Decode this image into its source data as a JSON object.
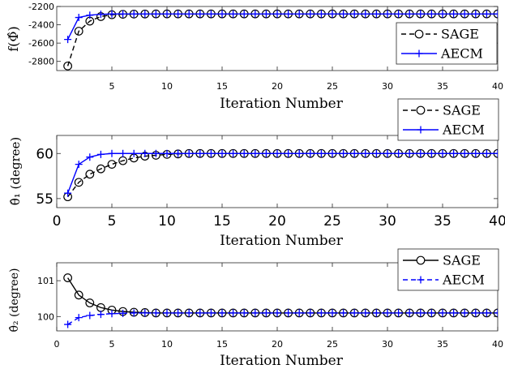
{
  "chart_data": [
    {
      "type": "line",
      "title": "",
      "xlabel": "Iteration Number",
      "ylabel": "f(Φ̂)",
      "xlim": [
        0,
        40
      ],
      "ylim": [
        -2900,
        -2200
      ],
      "x_ticks": [
        "5",
        "10",
        "15",
        "20",
        "25",
        "30",
        "35",
        "40"
      ],
      "y_ticks": [
        "-2200",
        "-2400",
        "-2600",
        "-2800"
      ],
      "y_tick_values": [
        -2200,
        -2400,
        -2600,
        -2800
      ],
      "legend": "right",
      "series": [
        {
          "name": "SAGE",
          "color": "#000000",
          "style": "dashed",
          "marker": "circle",
          "x": [
            1,
            2,
            3,
            4,
            5,
            6,
            7,
            8,
            9,
            10,
            11,
            12,
            13,
            14,
            15,
            16,
            17,
            18,
            19,
            20,
            21,
            22,
            23,
            24,
            25,
            26,
            27,
            28,
            29,
            30,
            31,
            32,
            33,
            34,
            35,
            36,
            37,
            38,
            39,
            40
          ],
          "values": [
            -2850,
            -2470,
            -2360,
            -2310,
            -2290,
            -2285,
            -2283,
            -2282,
            -2281,
            -2281,
            -2281,
            -2281,
            -2281,
            -2281,
            -2281,
            -2281,
            -2281,
            -2281,
            -2281,
            -2281,
            -2281,
            -2281,
            -2281,
            -2281,
            -2281,
            -2281,
            -2281,
            -2281,
            -2281,
            -2281,
            -2281,
            -2281,
            -2281,
            -2281,
            -2281,
            -2281,
            -2281,
            -2281,
            -2281,
            -2281
          ]
        },
        {
          "name": "AECM",
          "color": "#0000ff",
          "style": "solid",
          "marker": "plus",
          "x": [
            1,
            2,
            3,
            4,
            5,
            6,
            7,
            8,
            9,
            10,
            11,
            12,
            13,
            14,
            15,
            16,
            17,
            18,
            19,
            20,
            21,
            22,
            23,
            24,
            25,
            26,
            27,
            28,
            29,
            30,
            31,
            32,
            33,
            34,
            35,
            36,
            37,
            38,
            39,
            40
          ],
          "values": [
            -2560,
            -2320,
            -2295,
            -2285,
            -2282,
            -2281,
            -2281,
            -2281,
            -2281,
            -2281,
            -2281,
            -2281,
            -2281,
            -2281,
            -2281,
            -2281,
            -2281,
            -2281,
            -2281,
            -2281,
            -2281,
            -2281,
            -2281,
            -2281,
            -2281,
            -2281,
            -2281,
            -2281,
            -2281,
            -2281,
            -2281,
            -2281,
            -2281,
            -2281,
            -2281,
            -2281,
            -2281,
            -2281,
            -2281,
            -2281
          ]
        }
      ]
    },
    {
      "type": "line",
      "title": "",
      "xlabel": "Iteration Number",
      "ylabel": "θ̂₁ (degree)",
      "xlim": [
        0,
        40
      ],
      "ylim": [
        54,
        62
      ],
      "x_ticks": [
        "0",
        "5",
        "10",
        "15",
        "20",
        "25",
        "30",
        "35",
        "40"
      ],
      "y_ticks": [
        "55",
        "60"
      ],
      "y_tick_values": [
        55,
        60
      ],
      "legend": "top-right",
      "series": [
        {
          "name": "SAGE",
          "color": "#000000",
          "style": "dashed",
          "marker": "circle",
          "x": [
            1,
            2,
            3,
            4,
            5,
            6,
            7,
            8,
            9,
            10,
            11,
            12,
            13,
            14,
            15,
            16,
            17,
            18,
            19,
            20,
            21,
            22,
            23,
            24,
            25,
            26,
            27,
            28,
            29,
            30,
            31,
            32,
            33,
            34,
            35,
            36,
            37,
            38,
            39,
            40
          ],
          "values": [
            55.2,
            56.8,
            57.7,
            58.3,
            58.8,
            59.2,
            59.5,
            59.7,
            59.8,
            59.9,
            59.95,
            60,
            60,
            60,
            60,
            60,
            60,
            60,
            60,
            60,
            60,
            60,
            60,
            60,
            60,
            60,
            60,
            60,
            60,
            60,
            60,
            60,
            60,
            60,
            60,
            60,
            60,
            60,
            60,
            60
          ]
        },
        {
          "name": "AECM",
          "color": "#0000ff",
          "style": "solid",
          "marker": "plus",
          "x": [
            1,
            2,
            3,
            4,
            5,
            6,
            7,
            8,
            9,
            10,
            11,
            12,
            13,
            14,
            15,
            16,
            17,
            18,
            19,
            20,
            21,
            22,
            23,
            24,
            25,
            26,
            27,
            28,
            29,
            30,
            31,
            32,
            33,
            34,
            35,
            36,
            37,
            38,
            39,
            40
          ],
          "values": [
            55.6,
            58.8,
            59.6,
            59.9,
            60,
            60,
            60,
            60,
            60,
            60,
            60,
            60,
            60,
            60,
            60,
            60,
            60,
            60,
            60,
            60,
            60,
            60,
            60,
            60,
            60,
            60,
            60,
            60,
            60,
            60,
            60,
            60,
            60,
            60,
            60,
            60,
            60,
            60,
            60,
            60
          ]
        }
      ]
    },
    {
      "type": "line",
      "title": "",
      "xlabel": "Iteration Number",
      "ylabel": "θ̂₂ (degree)",
      "xlim": [
        0,
        40
      ],
      "ylim": [
        99.6,
        101.5
      ],
      "x_ticks": [
        "0",
        "5",
        "10",
        "15",
        "20",
        "25",
        "30",
        "35",
        "40"
      ],
      "y_ticks": [
        "100",
        "101"
      ],
      "y_tick_values": [
        100,
        101
      ],
      "legend": "top-right",
      "series": [
        {
          "name": "SAGE",
          "color": "#000000",
          "style": "solid",
          "marker": "circle",
          "x": [
            1,
            2,
            3,
            4,
            5,
            6,
            7,
            8,
            9,
            10,
            11,
            12,
            13,
            14,
            15,
            16,
            17,
            18,
            19,
            20,
            21,
            22,
            23,
            24,
            25,
            26,
            27,
            28,
            29,
            30,
            31,
            32,
            33,
            34,
            35,
            36,
            37,
            38,
            39,
            40
          ],
          "values": [
            101.08,
            100.6,
            100.38,
            100.25,
            100.18,
            100.14,
            100.12,
            100.11,
            100.1,
            100.1,
            100.1,
            100.1,
            100.1,
            100.1,
            100.1,
            100.1,
            100.1,
            100.1,
            100.1,
            100.1,
            100.1,
            100.1,
            100.1,
            100.1,
            100.1,
            100.1,
            100.1,
            100.1,
            100.1,
            100.1,
            100.1,
            100.1,
            100.1,
            100.1,
            100.1,
            100.1,
            100.1,
            100.1,
            100.1,
            100.1
          ]
        },
        {
          "name": "AECM",
          "color": "#0000ff",
          "style": "dashed",
          "marker": "plus",
          "x": [
            1,
            2,
            3,
            4,
            5,
            6,
            7,
            8,
            9,
            10,
            11,
            12,
            13,
            14,
            15,
            16,
            17,
            18,
            19,
            20,
            21,
            22,
            23,
            24,
            25,
            26,
            27,
            28,
            29,
            30,
            31,
            32,
            33,
            34,
            35,
            36,
            37,
            38,
            39,
            40
          ],
          "values": [
            99.78,
            99.97,
            100.03,
            100.06,
            100.08,
            100.09,
            100.1,
            100.1,
            100.1,
            100.1,
            100.1,
            100.1,
            100.1,
            100.1,
            100.1,
            100.1,
            100.1,
            100.1,
            100.1,
            100.1,
            100.1,
            100.1,
            100.1,
            100.1,
            100.1,
            100.1,
            100.1,
            100.1,
            100.1,
            100.1,
            100.1,
            100.1,
            100.1,
            100.1,
            100.1,
            100.1,
            100.1,
            100.1,
            100.1,
            100.1
          ]
        }
      ]
    }
  ]
}
